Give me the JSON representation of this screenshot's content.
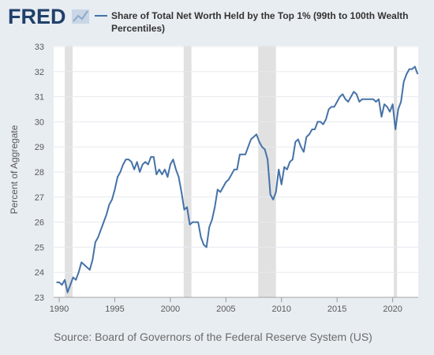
{
  "logo": "FRED",
  "chart_data": {
    "type": "line",
    "title": "Share of Total Net Worth Held by the Top 1% (99th to 100th Wealth Percentiles)",
    "ylabel": "Percent of Aggregate",
    "source": "Source: Board of Governors of the Federal Reserve System (US)",
    "xlim": [
      1989.5,
      2022.3
    ],
    "xticks": [
      1990,
      1995,
      2000,
      2005,
      2010,
      2015,
      2020
    ],
    "ylim": [
      23,
      33
    ],
    "yticks": [
      23,
      24,
      25,
      26,
      27,
      28,
      29,
      30,
      31,
      32,
      33
    ],
    "grid": true,
    "recessions": [
      [
        1990.5,
        1991.2
      ],
      [
        2001.2,
        2001.9
      ],
      [
        2007.9,
        2009.5
      ],
      [
        2020.1,
        2020.4
      ]
    ],
    "recession_color": "#e1e1e1",
    "x": [
      1989.75,
      1990,
      1990.25,
      1990.5,
      1990.75,
      1991,
      1991.25,
      1991.5,
      1991.75,
      1992,
      1992.25,
      1992.5,
      1992.75,
      1993,
      1993.25,
      1993.5,
      1993.75,
      1994,
      1994.25,
      1994.5,
      1994.75,
      1995,
      1995.25,
      1995.5,
      1995.75,
      1996,
      1996.25,
      1996.5,
      1996.75,
      1997,
      1997.25,
      1997.5,
      1997.75,
      1998,
      1998.25,
      1998.5,
      1998.75,
      1999,
      1999.25,
      1999.5,
      1999.75,
      2000,
      2000.25,
      2000.5,
      2000.75,
      2001,
      2001.25,
      2001.5,
      2001.75,
      2002,
      2002.25,
      2002.5,
      2002.75,
      2003,
      2003.25,
      2003.5,
      2003.75,
      2004,
      2004.25,
      2004.5,
      2004.75,
      2005,
      2005.25,
      2005.5,
      2005.75,
      2006,
      2006.25,
      2006.5,
      2006.75,
      2007,
      2007.25,
      2007.5,
      2007.75,
      2008,
      2008.25,
      2008.5,
      2008.75,
      2009,
      2009.25,
      2009.5,
      2009.75,
      2010,
      2010.25,
      2010.5,
      2010.75,
      2011,
      2011.25,
      2011.5,
      2011.75,
      2012,
      2012.25,
      2012.5,
      2012.75,
      2013,
      2013.25,
      2013.5,
      2013.75,
      2014,
      2014.25,
      2014.5,
      2014.75,
      2015,
      2015.25,
      2015.5,
      2015.75,
      2016,
      2016.25,
      2016.5,
      2016.75,
      2017,
      2017.25,
      2017.5,
      2017.75,
      2018,
      2018.25,
      2018.5,
      2018.75,
      2019,
      2019.25,
      2019.5,
      2019.75,
      2020,
      2020.25,
      2020.5,
      2020.75,
      2021,
      2021.25,
      2021.5,
      2021.75,
      2022,
      2022.25
    ],
    "series": [
      {
        "name": "Share of Total Net Worth Held by the Top 1% (99th to 100th Wealth Percentiles)",
        "color": "#4572a7",
        "values": [
          23.6,
          23.6,
          23.5,
          23.7,
          23.2,
          23.5,
          23.8,
          23.7,
          24.0,
          24.4,
          24.3,
          24.2,
          24.1,
          24.5,
          25.2,
          25.4,
          25.7,
          26.0,
          26.3,
          26.7,
          26.9,
          27.3,
          27.8,
          28.0,
          28.3,
          28.5,
          28.5,
          28.4,
          28.1,
          28.4,
          28.0,
          28.3,
          28.4,
          28.3,
          28.6,
          28.6,
          27.9,
          28.1,
          27.9,
          28.1,
          27.8,
          28.3,
          28.5,
          28.1,
          27.8,
          27.2,
          26.5,
          26.6,
          25.9,
          26.0,
          26.0,
          26.0,
          25.4,
          25.1,
          25.0,
          25.8,
          26.1,
          26.6,
          27.3,
          27.2,
          27.4,
          27.6,
          27.7,
          27.9,
          28.1,
          28.1,
          28.7,
          28.7,
          28.7,
          29.0,
          29.3,
          29.4,
          29.5,
          29.2,
          29.0,
          28.9,
          28.5,
          27.1,
          26.9,
          27.2,
          28.1,
          27.5,
          28.2,
          28.1,
          28.4,
          28.5,
          29.2,
          29.3,
          29.0,
          28.8,
          29.4,
          29.5,
          29.7,
          29.7,
          30.0,
          30.0,
          29.9,
          30.1,
          30.5,
          30.6,
          30.6,
          30.8,
          31.0,
          31.1,
          30.9,
          30.8,
          31.0,
          31.2,
          31.1,
          30.8,
          30.9,
          30.9,
          30.9,
          30.9,
          30.9,
          30.8,
          30.9,
          30.2,
          30.7,
          30.6,
          30.4,
          30.7,
          29.7,
          30.5,
          30.8,
          31.6,
          31.9,
          32.1,
          32.1,
          32.2,
          31.9
        ]
      }
    ]
  }
}
